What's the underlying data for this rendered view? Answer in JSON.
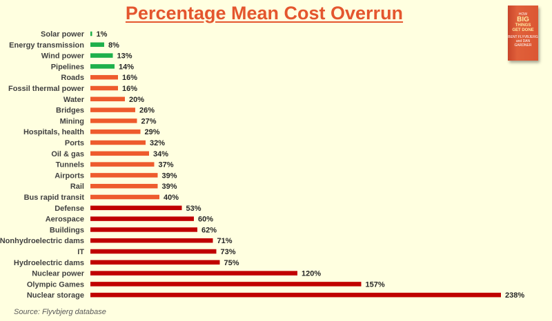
{
  "title": "Percentage Mean Cost Overrun",
  "source": "Source: Flyvbjerg database",
  "book": {
    "line1": "HOW",
    "line2": "BIG",
    "line3": "THINGS",
    "line4": "GET DONE",
    "authors": "BENT FLYVBJERG and DAN GARDNER"
  },
  "colors": {
    "background": "#ffffe0",
    "title": "#e4562e",
    "green": "#1eb04c",
    "orange": "#ee5b2d",
    "red": "#c00000"
  },
  "chart_data": {
    "type": "bar",
    "orientation": "horizontal",
    "title": "Percentage Mean Cost Overrun",
    "xlabel": "",
    "ylabel": "",
    "unit": "%",
    "xlim": [
      0,
      238
    ],
    "grid": false,
    "categories": [
      "Solar power",
      "Energy transmission",
      "Wind power",
      "Pipelines",
      "Roads",
      "Fossil thermal power",
      "Water",
      "Bridges",
      "Mining",
      "Hospitals, health",
      "Ports",
      "Oil & gas",
      "Tunnels",
      "Airports",
      "Rail",
      "Bus rapid transit",
      "Defense",
      "Aerospace",
      "Buildings",
      "Nonhydroelectric dams",
      "IT",
      "Hydroelectric dams",
      "Nuclear power",
      "Olympic Games",
      "Nuclear storage"
    ],
    "values": [
      1,
      8,
      13,
      14,
      16,
      16,
      20,
      26,
      27,
      29,
      32,
      34,
      37,
      39,
      39,
      40,
      53,
      60,
      62,
      71,
      73,
      75,
      120,
      157,
      238
    ],
    "bar_colors": [
      "green",
      "green",
      "green",
      "green",
      "orange",
      "orange",
      "orange",
      "orange",
      "orange",
      "orange",
      "orange",
      "orange",
      "orange",
      "orange",
      "orange",
      "orange",
      "red",
      "red",
      "red",
      "red",
      "red",
      "red",
      "red",
      "red",
      "red"
    ]
  }
}
